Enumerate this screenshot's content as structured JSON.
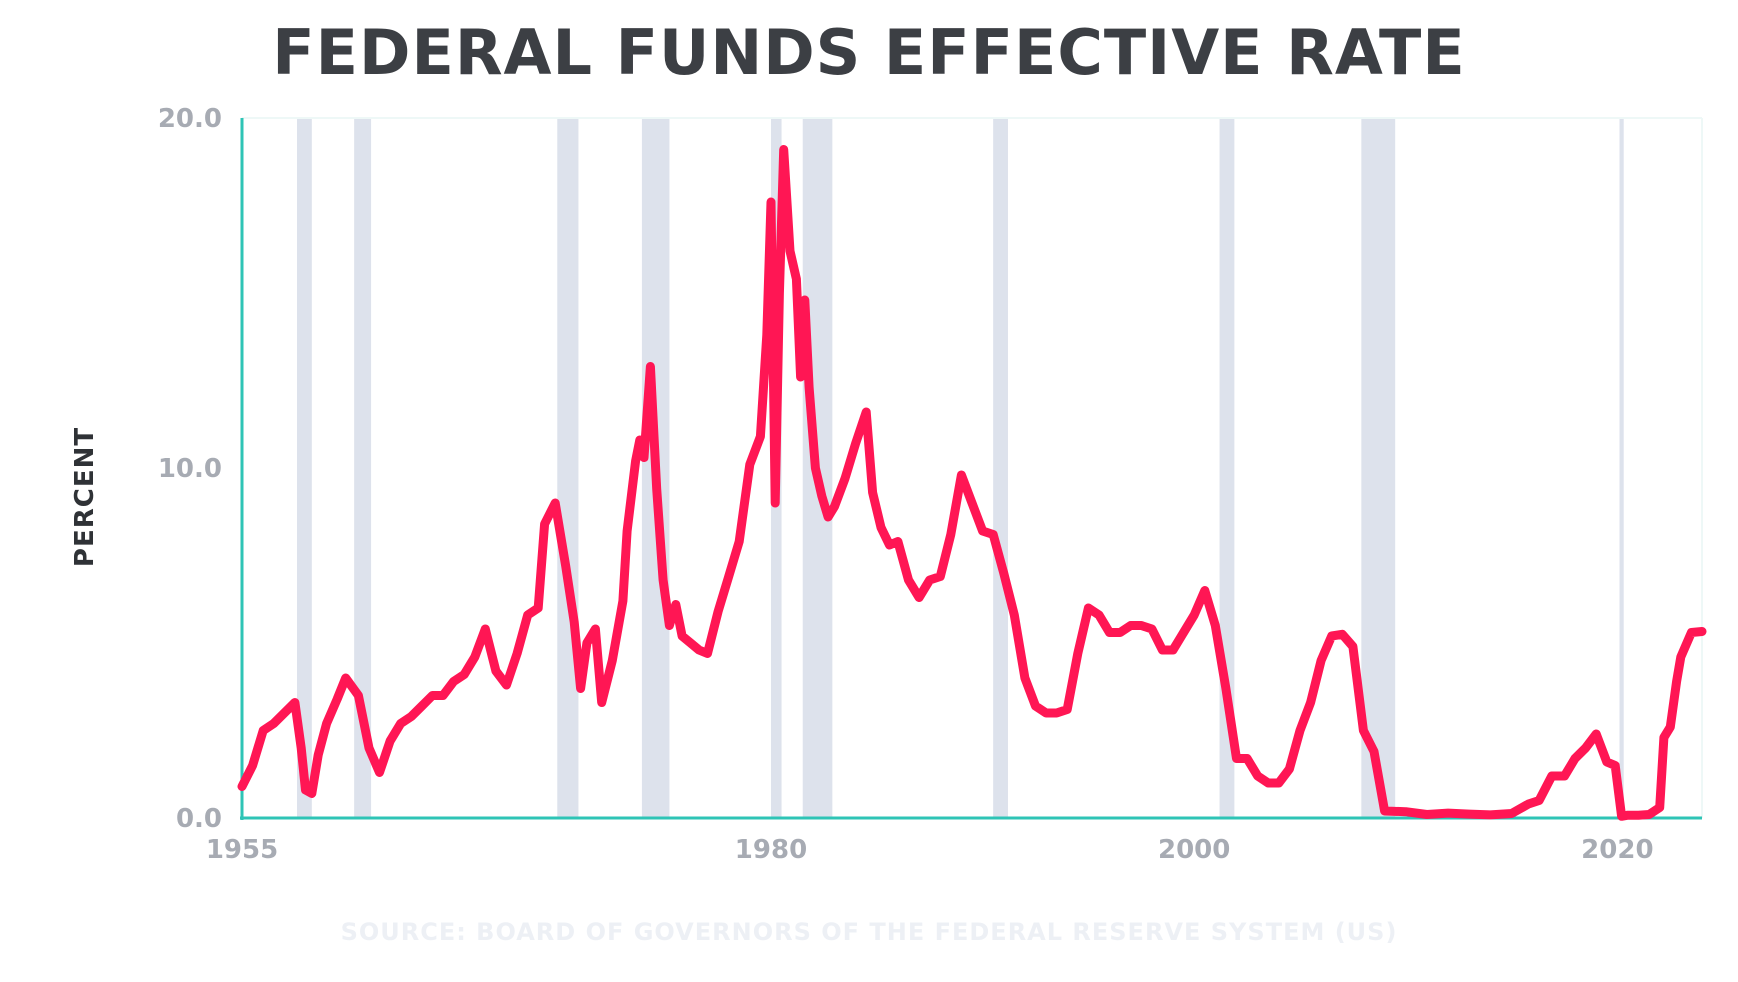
{
  "chart_data": {
    "type": "line",
    "title": "FEDERAL FUNDS EFFECTIVE RATE",
    "ylabel": "PERCENT",
    "source": "SOURCE: BOARD OF GOVERNORS OF THE FEDERAL RESERVE SYSTEM (US)",
    "xlim": [
      1955,
      2024
    ],
    "ylim": [
      0,
      20
    ],
    "x_ticks": [
      1955,
      1980,
      2000,
      2020
    ],
    "x_tick_labels": [
      "1955",
      "1980",
      "2000",
      "2020"
    ],
    "y_ticks": [
      0,
      10,
      20
    ],
    "y_tick_labels": [
      "0.0",
      "10.0",
      "20.0"
    ],
    "grid": false,
    "colors": {
      "line": "#ff1654",
      "axis": "#2ec4b6",
      "recession": "#dde2ec",
      "title": "#3c3f44",
      "tick": "#a7abb3"
    },
    "recessions": [
      [
        1957.6,
        1958.3
      ],
      [
        1960.3,
        1961.1
      ],
      [
        1969.9,
        1970.9
      ],
      [
        1973.9,
        1975.2
      ],
      [
        1980.0,
        1980.5
      ],
      [
        1981.5,
        1982.9
      ],
      [
        1990.5,
        1991.2
      ],
      [
        2001.2,
        2001.9
      ],
      [
        2007.9,
        2009.5
      ],
      [
        2020.1,
        2020.3
      ]
    ],
    "series": [
      {
        "x": [
          1955.0,
          1955.5,
          1956.0,
          1956.5,
          1957.0,
          1957.5,
          1957.8,
          1958.0,
          1958.3,
          1958.6,
          1959.0,
          1959.5,
          1959.9,
          1960.5,
          1961.0,
          1961.5,
          1962.0,
          1962.5,
          1963.0,
          1963.5,
          1964.0,
          1964.5,
          1965.0,
          1965.5,
          1966.0,
          1966.5,
          1967.0,
          1967.5,
          1968.0,
          1968.5,
          1969.0,
          1969.3,
          1969.8,
          1970.3,
          1970.7,
          1971.0,
          1971.3,
          1971.7,
          1972.0,
          1972.5,
          1973.0,
          1973.2,
          1973.6,
          1973.8,
          1974.0,
          1974.3,
          1974.6,
          1974.9,
          1975.2,
          1975.5,
          1975.8,
          1976.2,
          1976.6,
          1977.0,
          1977.5,
          1978.0,
          1978.5,
          1979.0,
          1979.5,
          1979.8,
          1980.0,
          1980.2,
          1980.4,
          1980.6,
          1980.9,
          1981.2,
          1981.4,
          1981.6,
          1981.8,
          1982.1,
          1982.4,
          1982.7,
          1983.0,
          1983.5,
          1984.0,
          1984.5,
          1984.8,
          1985.2,
          1985.6,
          1986.0,
          1986.5,
          1987.0,
          1987.5,
          1988.0,
          1988.5,
          1989.0,
          1989.5,
          1990.0,
          1990.5,
          1991.0,
          1991.5,
          1992.0,
          1992.5,
          1993.0,
          1993.5,
          1994.0,
          1994.5,
          1995.0,
          1995.5,
          1996.0,
          1996.5,
          1997.0,
          1997.5,
          1998.0,
          1998.5,
          1999.0,
          1999.5,
          2000.0,
          2000.5,
          2001.0,
          2001.5,
          2002.0,
          2002.5,
          2003.0,
          2003.5,
          2004.0,
          2004.5,
          2005.0,
          2005.5,
          2006.0,
          2006.5,
          2007.0,
          2007.5,
          2008.0,
          2008.5,
          2009.0,
          2010.0,
          2011.0,
          2012.0,
          2013.0,
          2014.0,
          2015.0,
          2015.8,
          2016.3,
          2016.9,
          2017.5,
          2018.0,
          2018.5,
          2019.0,
          2019.5,
          2019.9,
          2020.2,
          2020.5,
          2021.0,
          2021.5,
          2022.0,
          2022.2,
          2022.5,
          2022.8,
          2023.0,
          2023.5,
          2024.0
        ],
        "y": [
          0.9,
          1.5,
          2.5,
          2.7,
          3.0,
          3.3,
          2.0,
          0.8,
          0.7,
          1.8,
          2.7,
          3.4,
          4.0,
          3.5,
          2.0,
          1.3,
          2.2,
          2.7,
          2.9,
          3.2,
          3.5,
          3.5,
          3.9,
          4.1,
          4.6,
          5.4,
          4.2,
          3.8,
          4.7,
          5.8,
          6.0,
          8.4,
          9.0,
          7.2,
          5.6,
          3.7,
          5.0,
          5.4,
          3.3,
          4.5,
          6.2,
          8.2,
          10.2,
          10.8,
          10.3,
          12.9,
          9.4,
          6.8,
          5.5,
          6.1,
          5.2,
          5.0,
          4.8,
          4.7,
          5.9,
          6.9,
          7.9,
          10.1,
          10.9,
          13.8,
          17.6,
          9.0,
          15.0,
          19.1,
          16.2,
          15.4,
          12.6,
          14.8,
          12.3,
          10.0,
          9.2,
          8.6,
          8.9,
          9.7,
          10.7,
          11.6,
          9.3,
          8.3,
          7.8,
          7.9,
          6.8,
          6.3,
          6.8,
          6.9,
          8.1,
          9.8,
          9.0,
          8.2,
          8.1,
          7.0,
          5.8,
          4.0,
          3.2,
          3.0,
          3.0,
          3.1,
          4.7,
          6.0,
          5.8,
          5.3,
          5.3,
          5.5,
          5.5,
          5.4,
          4.8,
          4.8,
          5.3,
          5.8,
          6.5,
          5.5,
          3.7,
          1.7,
          1.7,
          1.2,
          1.0,
          1.0,
          1.4,
          2.5,
          3.3,
          4.5,
          5.2,
          5.25,
          4.9,
          2.5,
          1.9,
          0.2,
          0.18,
          0.1,
          0.14,
          0.11,
          0.09,
          0.13,
          0.4,
          0.5,
          1.2,
          1.2,
          1.7,
          2.0,
          2.4,
          1.6,
          1.5,
          0.05,
          0.08,
          0.08,
          0.1,
          0.3,
          2.3,
          2.6,
          3.9,
          4.6,
          5.3,
          5.33
        ]
      }
    ]
  }
}
